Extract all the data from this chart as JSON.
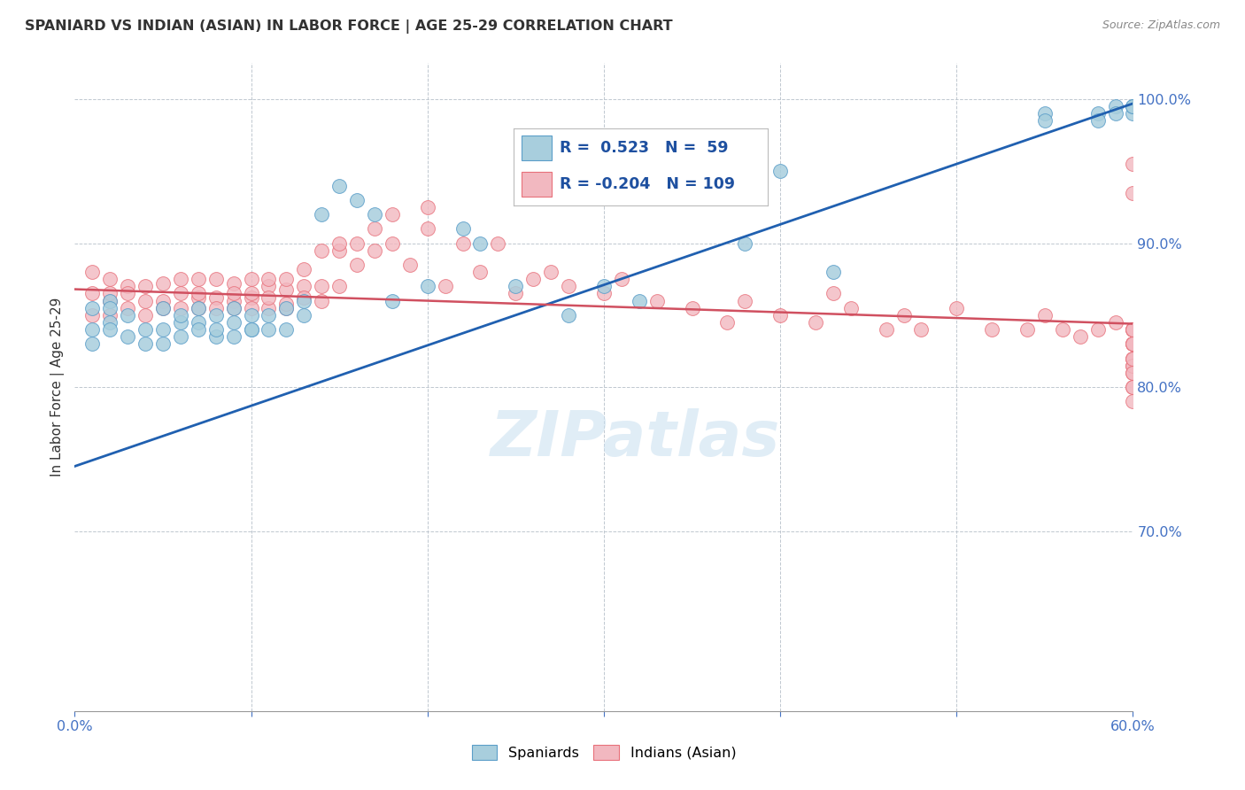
{
  "title": "SPANIARD VS INDIAN (ASIAN) IN LABOR FORCE | AGE 25-29 CORRELATION CHART",
  "source": "Source: ZipAtlas.com",
  "ylabel": "In Labor Force | Age 25-29",
  "xlim": [
    0.0,
    0.6
  ],
  "ylim": [
    0.575,
    1.025
  ],
  "xtick_labels": [
    "0.0%",
    "60.0%"
  ],
  "xtick_vals": [
    0.0,
    0.6
  ],
  "yticks": [
    0.7,
    0.8,
    0.9,
    1.0
  ],
  "blue_R": 0.523,
  "blue_N": 59,
  "pink_R": -0.204,
  "pink_N": 109,
  "legend_spaniards": "Spaniards",
  "legend_indians": "Indians (Asian)",
  "blue_color": "#A8CEDD",
  "pink_color": "#F2B8C0",
  "blue_edge_color": "#5B9EC9",
  "pink_edge_color": "#E8707A",
  "blue_line_color": "#2060B0",
  "pink_line_color": "#D05060",
  "watermark": "ZIPatlas",
  "blue_scatter_x": [
    0.01,
    0.01,
    0.01,
    0.02,
    0.02,
    0.02,
    0.02,
    0.03,
    0.03,
    0.04,
    0.04,
    0.05,
    0.05,
    0.05,
    0.06,
    0.06,
    0.06,
    0.07,
    0.07,
    0.07,
    0.08,
    0.08,
    0.08,
    0.09,
    0.09,
    0.09,
    0.1,
    0.1,
    0.1,
    0.11,
    0.11,
    0.12,
    0.12,
    0.13,
    0.13,
    0.14,
    0.15,
    0.16,
    0.17,
    0.18,
    0.2,
    0.22,
    0.23,
    0.25,
    0.28,
    0.3,
    0.32,
    0.38,
    0.4,
    0.43,
    0.55,
    0.55,
    0.58,
    0.58,
    0.59,
    0.59,
    0.6,
    0.6,
    0.6
  ],
  "blue_scatter_y": [
    0.84,
    0.855,
    0.83,
    0.845,
    0.86,
    0.84,
    0.855,
    0.835,
    0.85,
    0.84,
    0.83,
    0.84,
    0.855,
    0.83,
    0.845,
    0.835,
    0.85,
    0.845,
    0.855,
    0.84,
    0.835,
    0.85,
    0.84,
    0.845,
    0.855,
    0.835,
    0.84,
    0.85,
    0.84,
    0.85,
    0.84,
    0.84,
    0.855,
    0.85,
    0.86,
    0.92,
    0.94,
    0.93,
    0.92,
    0.86,
    0.87,
    0.91,
    0.9,
    0.87,
    0.85,
    0.87,
    0.86,
    0.9,
    0.95,
    0.88,
    0.99,
    0.985,
    0.99,
    0.985,
    0.995,
    0.99,
    0.99,
    0.995,
    0.995
  ],
  "pink_scatter_x": [
    0.01,
    0.01,
    0.01,
    0.02,
    0.02,
    0.02,
    0.02,
    0.03,
    0.03,
    0.03,
    0.04,
    0.04,
    0.04,
    0.05,
    0.05,
    0.05,
    0.06,
    0.06,
    0.06,
    0.07,
    0.07,
    0.07,
    0.07,
    0.08,
    0.08,
    0.08,
    0.09,
    0.09,
    0.09,
    0.09,
    0.1,
    0.1,
    0.1,
    0.1,
    0.11,
    0.11,
    0.11,
    0.11,
    0.12,
    0.12,
    0.12,
    0.12,
    0.13,
    0.13,
    0.13,
    0.14,
    0.14,
    0.14,
    0.15,
    0.15,
    0.15,
    0.16,
    0.16,
    0.17,
    0.17,
    0.18,
    0.18,
    0.19,
    0.2,
    0.2,
    0.21,
    0.22,
    0.23,
    0.24,
    0.25,
    0.26,
    0.27,
    0.28,
    0.3,
    0.31,
    0.33,
    0.35,
    0.37,
    0.38,
    0.4,
    0.42,
    0.43,
    0.44,
    0.46,
    0.47,
    0.48,
    0.5,
    0.52,
    0.54,
    0.55,
    0.56,
    0.57,
    0.58,
    0.59,
    0.6,
    0.6,
    0.6,
    0.6,
    0.6,
    0.6,
    0.6,
    0.6,
    0.6,
    0.6,
    0.6,
    0.6,
    0.6,
    0.6,
    0.6,
    0.6,
    0.6,
    0.6,
    0.6,
    0.6
  ],
  "pink_scatter_y": [
    0.88,
    0.865,
    0.85,
    0.875,
    0.86,
    0.85,
    0.865,
    0.87,
    0.855,
    0.865,
    0.86,
    0.85,
    0.87,
    0.86,
    0.872,
    0.855,
    0.865,
    0.875,
    0.855,
    0.862,
    0.875,
    0.855,
    0.865,
    0.862,
    0.875,
    0.855,
    0.86,
    0.872,
    0.855,
    0.865,
    0.862,
    0.875,
    0.855,
    0.865,
    0.87,
    0.855,
    0.862,
    0.875,
    0.855,
    0.868,
    0.875,
    0.858,
    0.87,
    0.882,
    0.862,
    0.87,
    0.895,
    0.86,
    0.895,
    0.87,
    0.9,
    0.885,
    0.9,
    0.895,
    0.91,
    0.9,
    0.92,
    0.885,
    0.91,
    0.925,
    0.87,
    0.9,
    0.88,
    0.9,
    0.865,
    0.875,
    0.88,
    0.87,
    0.865,
    0.875,
    0.86,
    0.855,
    0.845,
    0.86,
    0.85,
    0.845,
    0.865,
    0.855,
    0.84,
    0.85,
    0.84,
    0.855,
    0.84,
    0.84,
    0.85,
    0.84,
    0.835,
    0.84,
    0.845,
    0.955,
    0.935,
    0.83,
    0.815,
    0.8,
    0.84,
    0.83,
    0.84,
    0.82,
    0.84,
    0.8,
    0.81,
    0.82,
    0.83,
    0.815,
    0.84,
    0.79,
    0.83,
    0.81,
    0.82
  ]
}
